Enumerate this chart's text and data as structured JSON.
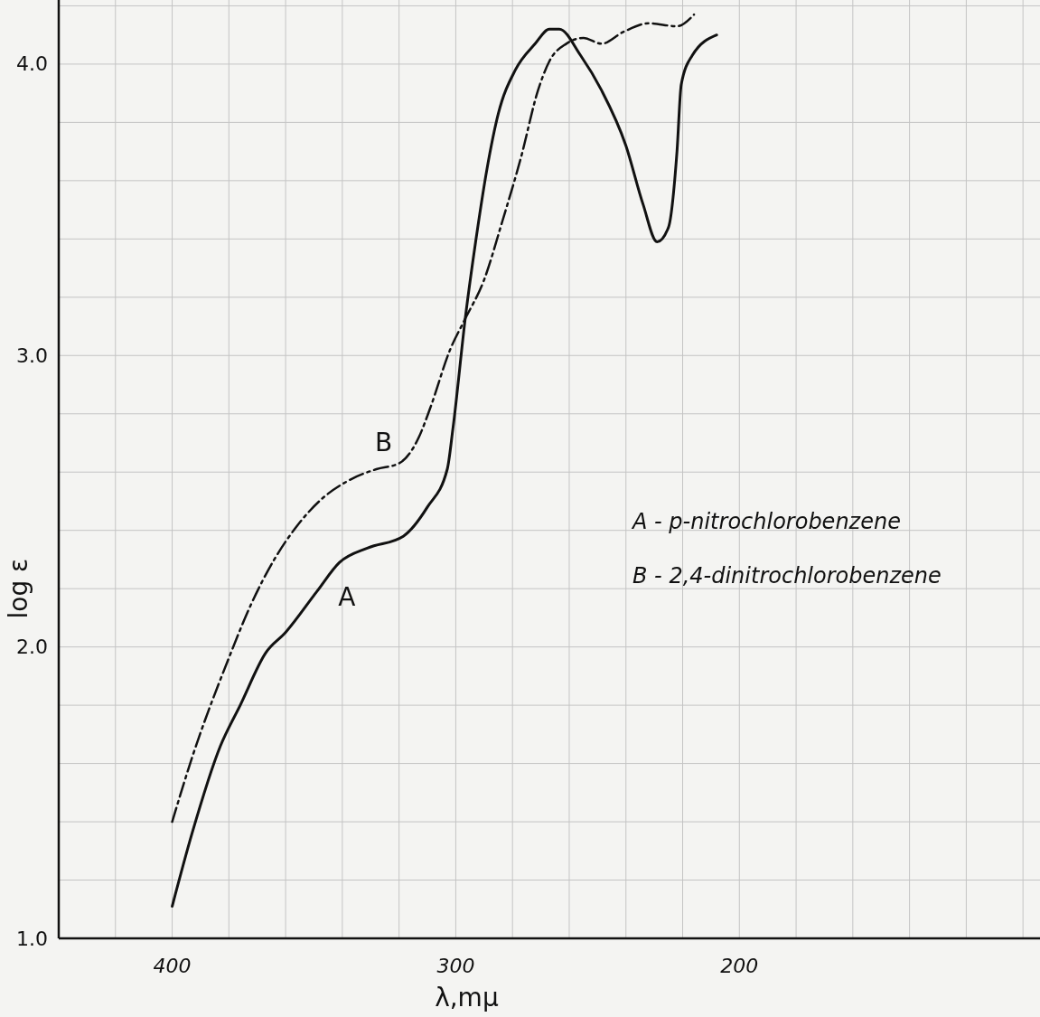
{
  "chart_data": {
    "type": "line",
    "xlabel": "λ,mμ",
    "ylabel": "log ε",
    "xlim": [
      440,
      94
    ],
    "ylim": [
      1.0,
      4.22
    ],
    "xticks": [
      {
        "value": 440,
        "label": null
      },
      {
        "value": 420,
        "label": null
      },
      400,
      {
        "value": 380,
        "label": null
      },
      {
        "value": 360,
        "label": null
      },
      {
        "value": 340,
        "label": null
      },
      {
        "value": 320,
        "label": null
      },
      300,
      {
        "value": 280,
        "label": null
      },
      {
        "value": 260,
        "label": null
      },
      {
        "value": 240,
        "label": null
      },
      {
        "value": 220,
        "label": null
      },
      200,
      {
        "value": 180,
        "label": null
      },
      {
        "value": 160,
        "label": null
      },
      {
        "value": 140,
        "label": null
      },
      {
        "value": 120,
        "label": null
      },
      {
        "value": 100,
        "label": null
      }
    ],
    "yticks": [
      {
        "value": 1.0,
        "label": "1.0"
      },
      {
        "value": 1.2,
        "label": null
      },
      {
        "value": 1.4,
        "label": null
      },
      {
        "value": 1.6,
        "label": null
      },
      {
        "value": 1.8,
        "label": null
      },
      {
        "value": 2.0,
        "label": "2.0"
      },
      {
        "value": 2.2,
        "label": null
      },
      {
        "value": 2.4,
        "label": null
      },
      {
        "value": 2.6,
        "label": null
      },
      {
        "value": 2.8,
        "label": null
      },
      {
        "value": 3.0,
        "label": "3.0"
      },
      {
        "value": 3.2,
        "label": null
      },
      {
        "value": 3.4,
        "label": null
      },
      {
        "value": 3.6,
        "label": null
      },
      {
        "value": 3.8,
        "label": null
      },
      {
        "value": 4.0,
        "label": "4.0"
      },
      {
        "value": 4.2,
        "label": null
      }
    ],
    "grid": true,
    "marker": "none",
    "series": [
      {
        "name": "A",
        "color": "#111111",
        "line_style": "solid",
        "x": [
          400,
          393,
          383,
          376,
          367,
          360,
          349,
          341,
          331,
          318.5,
          310,
          303,
          301,
          296.5,
          293,
          289,
          285,
          279,
          272,
          267,
          263.5,
          256,
          248.6,
          240,
          234,
          229,
          225,
          222,
          220.5,
          216.6,
          208
        ],
        "values": [
          1.11,
          1.36,
          1.66,
          1.8,
          1.98,
          2.05,
          2.19,
          2.29,
          2.34,
          2.38,
          2.48,
          2.61,
          2.75,
          3.14,
          3.39,
          3.64,
          3.83,
          3.98,
          4.07,
          4.12,
          4.12,
          4.03,
          3.91,
          3.72,
          3.52,
          3.39,
          3.44,
          3.7,
          3.93,
          4.03,
          4.1
        ]
      },
      {
        "name": "B",
        "color": "#111111",
        "line_style": "dashed",
        "x": [
          400,
          393,
          380.5,
          372,
          364,
          355.6,
          347,
          338,
          328,
          320,
          313,
          309,
          302,
          297,
          290,
          283.6,
          277,
          271,
          267,
          261,
          255,
          248.6,
          241,
          232,
          222,
          216
        ],
        "values": [
          1.4,
          1.62,
          1.95,
          2.15,
          2.3,
          2.42,
          2.51,
          2.57,
          2.61,
          2.63,
          2.72,
          2.82,
          3.02,
          3.12,
          3.26,
          3.46,
          3.68,
          3.91,
          4.01,
          4.07,
          4.09,
          4.07,
          4.11,
          4.14,
          4.13,
          4.17
        ]
      }
    ],
    "annotations": [
      "A - p-nitrochlorobenzene",
      "B - 2,4-dinitrochlorobenzene"
    ]
  }
}
